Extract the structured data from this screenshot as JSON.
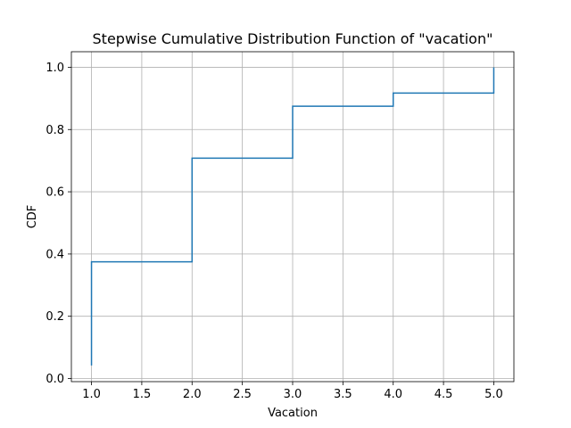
{
  "chart_data": {
    "type": "line",
    "drawstyle": "steps-post",
    "title": "Stepwise Cumulative Distribution Function of \"vacation\"",
    "xlabel": "Vacation",
    "ylabel": "CDF",
    "xlim": [
      0.8,
      5.2
    ],
    "ylim": [
      -0.01,
      1.05
    ],
    "xticks": [
      1.0,
      1.5,
      2.0,
      2.5,
      3.0,
      3.5,
      4.0,
      4.5,
      5.0
    ],
    "xtick_labels": [
      "1.0",
      "1.5",
      "2.0",
      "2.5",
      "3.0",
      "3.5",
      "4.0",
      "4.5",
      "5.0"
    ],
    "yticks": [
      0.0,
      0.2,
      0.4,
      0.6,
      0.8,
      1.0
    ],
    "ytick_labels": [
      "0.0",
      "0.2",
      "0.4",
      "0.6",
      "0.8",
      "1.0"
    ],
    "grid": true,
    "series": [
      {
        "color": "#1f77b4",
        "x": [
          1.0,
          1.0,
          2.0,
          3.0,
          4.0,
          5.0,
          5.0
        ],
        "y": [
          0.042,
          0.375,
          0.708,
          0.875,
          0.917,
          0.917,
          1.0
        ]
      }
    ]
  }
}
